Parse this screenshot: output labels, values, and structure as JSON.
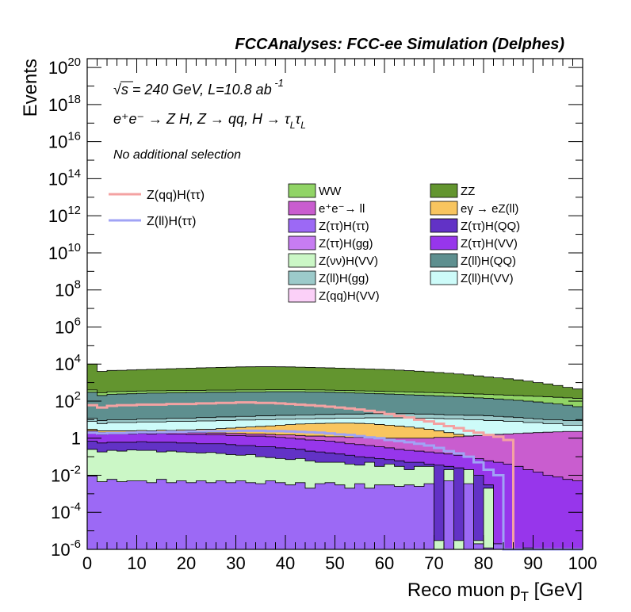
{
  "chart_data": {
    "type": "stacked-histogram",
    "title": "FCCAnalyses: FCC-ee Simulation (Delphes)",
    "xlabel": "Reco muon p",
    "xlabel_sub": "T",
    "xlabel_unit": " [GeV]",
    "ylabel": "Events",
    "xlim": [
      0,
      100
    ],
    "ylim": [
      1e-06,
      3e+20
    ],
    "yscale": "log",
    "x_ticks": [
      0,
      10,
      20,
      30,
      40,
      50,
      60,
      70,
      80,
      90,
      100
    ],
    "x_tick_labels": [
      "0",
      "10",
      "20",
      "30",
      "40",
      "50",
      "60",
      "70",
      "80",
      "90",
      "100"
    ],
    "y_ticks": [
      {
        "value": 1e-06,
        "base": "10",
        "exp": "-6"
      },
      {
        "value": 0.0001,
        "base": "10",
        "exp": "-4"
      },
      {
        "value": 0.01,
        "base": "10",
        "exp": "-2"
      },
      {
        "value": 1,
        "base": "1",
        "exp": ""
      },
      {
        "value": 100.0,
        "base": "10",
        "exp": "2"
      },
      {
        "value": 10000.0,
        "base": "10",
        "exp": "4"
      },
      {
        "value": 1000000.0,
        "base": "10",
        "exp": "6"
      },
      {
        "value": 100000000.0,
        "base": "10",
        "exp": "8"
      },
      {
        "value": 10000000000.0,
        "base": "10",
        "exp": "10"
      },
      {
        "value": 1000000000000.0,
        "base": "10",
        "exp": "12"
      },
      {
        "value": 100000000000000.0,
        "base": "10",
        "exp": "14"
      },
      {
        "value": 1e+16,
        "base": "10",
        "exp": "16"
      },
      {
        "value": 1e+18,
        "base": "10",
        "exp": "18"
      },
      {
        "value": 1e+20,
        "base": "10",
        "exp": "20"
      }
    ],
    "bin_width": 2,
    "annotations": {
      "energy_sqrt": "√",
      "energy": "s = 240 GeV, L=10.8 ab",
      "energy_exp": " -1",
      "process": "e⁺e⁻ → Z H, Z → qq, H → τ",
      "process_sub1": "L",
      "process_tau2": "τ",
      "process_sub2": "L",
      "selection": "No additional selection"
    },
    "signal_legend": [
      {
        "name": "Z(qq)H(ττ)",
        "color": "#f4a2a2"
      },
      {
        "name": "Z(ll)H(ττ)",
        "color": "#a0a3f5"
      }
    ],
    "stack_legend": [
      {
        "name": "WW",
        "color": "#91d466"
      },
      {
        "name": "ZZ",
        "color": "#63952f"
      },
      {
        "name": "e⁺e⁻→ ll",
        "color": "#c95dcf"
      },
      {
        "name": "eγ → eZ(ll)",
        "color": "#f8c55f"
      },
      {
        "name": "Z(ττ)H(ττ)",
        "color": "#9c69f5"
      },
      {
        "name": "Z(ττ)H(QQ)",
        "color": "#6232c6"
      },
      {
        "name": "Z(ττ)H(gg)",
        "color": "#c77cf2"
      },
      {
        "name": "Z(ττ)H(VV)",
        "color": "#9736eb"
      },
      {
        "name": "Z(νν)H(VV)",
        "color": "#cbf7c6"
      },
      {
        "name": "Z(ll)H(QQ)",
        "color": "#5e8f8f"
      },
      {
        "name": "Z(ll)H(gg)",
        "color": "#9ccaca"
      },
      {
        "name": "Z(ll)H(VV)",
        "color": "#cdfbf9"
      },
      {
        "name": "Z(qq)H(VV)",
        "color": "#fbd0f8"
      }
    ],
    "stack_levels": [
      {
        "name": "Z(ττ)H(ττ)",
        "color": "#9c69f5",
        "values": [
          0.009,
          0.0045,
          0.006,
          0.0045,
          0.005,
          0.005,
          0.004,
          0.006,
          0.004,
          0.005,
          0.004,
          0.005,
          0.004,
          0.005,
          0.004,
          0.005,
          0.004,
          0.0035,
          0.005,
          0.004,
          0.003,
          0.004,
          0.002,
          0.0035,
          0.004,
          0.003,
          0.002,
          0.0035,
          0.002,
          0.003,
          0.003,
          0.0025,
          0.003,
          0.0025,
          0.0035,
          1e-06,
          0.005,
          1e-06,
          0.0035,
          2e-06,
          1.2e-06,
          2e-06,
          1e-06,
          1e-06,
          1.2e-06,
          1e-06,
          1e-06,
          1e-06,
          1e-06,
          1e-06
        ]
      },
      {
        "name": "Z(νν)H(VV)",
        "color": "#cbf7c6",
        "values": [
          0.25,
          0.18,
          0.22,
          0.2,
          0.23,
          0.22,
          0.22,
          0.18,
          0.2,
          0.18,
          0.17,
          0.16,
          0.17,
          0.15,
          0.13,
          0.12,
          0.13,
          0.1,
          0.09,
          0.08,
          0.07,
          0.08,
          0.06,
          0.05,
          0.05,
          0.05,
          0.04,
          0.035,
          0.05,
          0.03,
          0.04,
          0.03,
          0.02,
          0.03,
          0.03,
          3e-06,
          0.02,
          3e-06,
          0.02,
          3e-06,
          0.002,
          1.5e-06,
          1e-06,
          1e-06,
          1e-06,
          1e-06,
          1e-06,
          1e-06,
          1e-06,
          1e-06
        ]
      },
      {
        "name": "Z(ττ)H(QQ)",
        "color": "#6232c6",
        "values": [
          0.7,
          0.55,
          0.6,
          0.6,
          0.6,
          0.65,
          0.6,
          0.6,
          0.6,
          0.55,
          0.55,
          0.5,
          0.5,
          0.5,
          0.45,
          0.4,
          0.4,
          0.35,
          0.35,
          0.3,
          0.28,
          0.25,
          0.2,
          0.18,
          0.16,
          0.14,
          0.12,
          0.1,
          0.09,
          0.08,
          0.07,
          0.06,
          0.05,
          0.05,
          0.04,
          0.035,
          0.03,
          0.025,
          0.02,
          0.01,
          0.003,
          1.5e-06,
          1e-06,
          1e-06,
          1e-06,
          1e-06,
          1e-06,
          1e-06,
          1e-06,
          1e-06
        ]
      },
      {
        "name": "Z(ττ)H(VV)",
        "color": "#9736eb",
        "values": [
          2.2,
          1.6,
          1.7,
          1.7,
          1.7,
          1.8,
          1.7,
          1.8,
          1.7,
          1.7,
          1.6,
          1.6,
          1.5,
          1.5,
          1.4,
          1.4,
          1.3,
          1.3,
          1.2,
          1.1,
          1.0,
          0.9,
          0.8,
          0.75,
          0.7,
          0.6,
          0.5,
          0.45,
          0.4,
          0.35,
          0.3,
          0.25,
          0.22,
          0.2,
          0.18,
          0.16,
          0.14,
          0.12,
          0.1,
          0.08,
          0.06,
          0.05,
          0.04,
          0.03,
          0.02,
          0.015,
          0.01,
          0.008,
          0.006,
          0.005
        ]
      },
      {
        "name": "e⁺e⁻→ ll",
        "color": "#c95dcf",
        "values": [
          2.5,
          2,
          2,
          2,
          2,
          2.1,
          2,
          2.1,
          2,
          2.1,
          2,
          2,
          1.9,
          1.9,
          1.8,
          1.8,
          1.7,
          1.7,
          1.6,
          1.5,
          1.5,
          1.4,
          1.3,
          1.3,
          1.2,
          1.2,
          1.1,
          1.1,
          1.0,
          1.0,
          1.0,
          1.0,
          1.0,
          1.0,
          1.0,
          1.1,
          1.1,
          1.2,
          1.3,
          1.4,
          1.5,
          1.6,
          1.7,
          1.8,
          1.9,
          2.0,
          2.1,
          2.2,
          2.3,
          2.3
        ]
      },
      {
        "name": "eγ → eZ(ll)",
        "color": "#f8c55f",
        "values": [
          3,
          2.5,
          2.5,
          2.5,
          2.5,
          2.6,
          2.5,
          2.7,
          2.6,
          2.8,
          2.8,
          3,
          3,
          3.3,
          3.5,
          3.8,
          4,
          4.3,
          4.6,
          5,
          5.4,
          5.8,
          6,
          6.2,
          6.4,
          6.5,
          6.5,
          6.3,
          6,
          5.5,
          5,
          4.5,
          4,
          3.5,
          3,
          2.5,
          2,
          1.6,
          1.3,
          1.0,
          0.8,
          0.6,
          0.5,
          0.3,
          1e-06,
          0.0014,
          1e-06,
          0.0014,
          1e-06,
          0.0014
        ]
      },
      {
        "name": "Z(ll)H(VV)",
        "color": "#cdfbf9",
        "values": [
          8,
          6,
          7,
          7,
          7,
          7.5,
          7.5,
          7.5,
          8,
          8,
          8,
          8.5,
          8.5,
          9,
          9,
          9.5,
          9.5,
          10,
          10,
          10.5,
          10.5,
          11,
          11,
          11.5,
          11.5,
          12,
          12,
          12,
          12.5,
          12.5,
          12.5,
          12.5,
          12.5,
          12,
          12,
          11.5,
          11,
          11,
          10,
          10,
          9,
          9,
          8,
          8,
          7,
          7,
          6,
          6,
          5,
          5
        ]
      },
      {
        "name": "Z(ll)H(gg)",
        "color": "#9ccaca",
        "values": [
          12,
          9,
          10,
          10,
          10,
          11,
          11,
          11,
          12,
          12,
          12,
          13,
          13,
          14,
          14,
          15,
          15,
          16,
          16,
          17,
          17,
          18,
          18,
          19,
          19,
          20,
          20,
          20,
          21,
          21,
          21,
          21,
          21,
          20,
          20,
          19,
          18,
          18,
          17,
          17,
          16,
          15,
          14,
          13,
          12,
          11,
          10,
          10,
          9,
          9
        ]
      },
      {
        "name": "Z(ll)H(QQ)",
        "color": "#5e8f8f",
        "values": [
          300,
          200,
          230,
          240,
          250,
          260,
          270,
          270,
          280,
          280,
          290,
          290,
          300,
          300,
          300,
          310,
          310,
          310,
          320,
          320,
          320,
          320,
          310,
          310,
          300,
          290,
          280,
          270,
          260,
          250,
          240,
          230,
          220,
          210,
          200,
          190,
          180,
          170,
          160,
          150,
          140,
          130,
          120,
          110,
          100,
          90,
          80,
          70,
          60,
          50
        ]
      },
      {
        "name": "WW",
        "color": "#91d466",
        "values": [
          400,
          280,
          320,
          330,
          340,
          350,
          360,
          360,
          370,
          370,
          380,
          380,
          390,
          390,
          390,
          400,
          400,
          400,
          410,
          410,
          410,
          410,
          400,
          400,
          390,
          380,
          370,
          360,
          350,
          340,
          330,
          320,
          310,
          300,
          290,
          280,
          270,
          260,
          250,
          240,
          230,
          220,
          210,
          200,
          190,
          180,
          170,
          160,
          150,
          140
        ]
      },
      {
        "name": "ZZ",
        "color": "#63952f",
        "values": [
          10000,
          4000,
          4500,
          4600,
          4800,
          5000,
          5200,
          5400,
          5600,
          5800,
          6000,
          6200,
          6400,
          6600,
          6800,
          7000,
          7100,
          7200,
          7200,
          7100,
          7000,
          6800,
          6600,
          6400,
          6200,
          6000,
          5800,
          5600,
          5400,
          5200,
          5000,
          4700,
          4400,
          4100,
          3800,
          3500,
          3200,
          2900,
          2600,
          2300,
          2000,
          1800,
          1600,
          1400,
          1200,
          1000,
          850,
          700,
          550,
          450
        ]
      }
    ],
    "signal_lines": [
      {
        "name": "Z(qq)H(ττ)",
        "color": "#f4a2a2",
        "values": [
          60,
          45,
          55,
          60,
          60,
          65,
          65,
          65,
          70,
          70,
          70,
          75,
          75,
          80,
          80,
          85,
          85,
          80,
          80,
          75,
          70,
          65,
          60,
          55,
          50,
          45,
          40,
          35,
          30,
          25,
          20,
          16,
          13,
          10,
          8,
          6,
          4.5,
          3.5,
          2.5,
          2,
          1.5,
          1.2,
          0.8,
          1e-06,
          1e-06,
          1e-06,
          1e-06,
          1e-06,
          1e-06,
          1e-06
        ]
      },
      {
        "name": "Z(ll)H(ττ)",
        "color": "#a0a3f5",
        "values": [
          2,
          1.8,
          1.9,
          1.9,
          2.0,
          2.1,
          2.1,
          2.1,
          2.2,
          2.2,
          2.3,
          2.3,
          2.4,
          2.4,
          2.4,
          2.5,
          2.5,
          2.5,
          2.4,
          2.4,
          2.3,
          2.2,
          2.1,
          2.0,
          1.8,
          1.6,
          1.5,
          1.3,
          1.1,
          1.0,
          0.8,
          0.7,
          0.6,
          0.5,
          0.4,
          0.3,
          0.2,
          0.15,
          0.1,
          0.05,
          0.02,
          0.01,
          1e-06,
          1e-06,
          1e-06,
          1e-06,
          1e-06,
          1e-06,
          1e-06,
          1e-06
        ]
      }
    ]
  }
}
